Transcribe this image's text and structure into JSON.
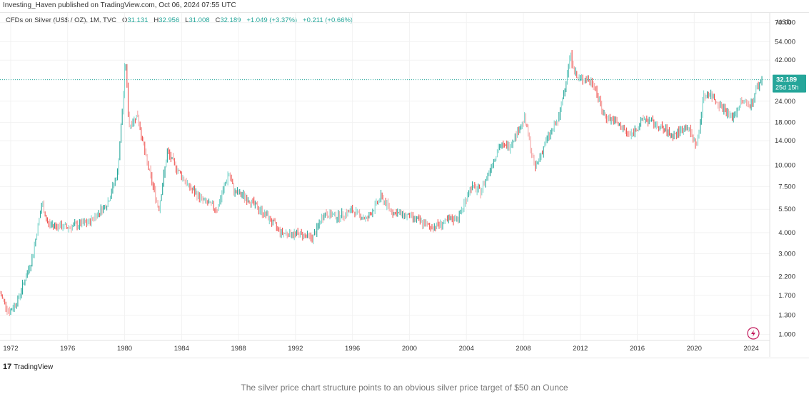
{
  "header": {
    "text": "Investing_Haven published on TradingView.com, Oct 06, 2024 07:55 UTC"
  },
  "legend": {
    "symbol": "CFDs on Silver (US$ / OZ), 1M, TVC",
    "o_label": "O",
    "o_value": "31.131",
    "h_label": "H",
    "h_value": "32.956",
    "l_label": "L",
    "l_value": "31.008",
    "c_label": "C",
    "c_value": "32.189",
    "change": "+1.049 (+3.37%)",
    "change2": "+0.211 (+0.66%)"
  },
  "price_axis": {
    "currency": "USD",
    "last_price": "32.189",
    "countdown": "25d 15h"
  },
  "branding": {
    "logo_mark": "17",
    "logo_text": "TradingView"
  },
  "caption": "The silver price chart structure points to an obvious silver price target of $50 an Ounce",
  "colors": {
    "up": "#26a69a",
    "down": "#ef5350",
    "up_light": "#7fd6cd",
    "down_light": "#f4a6a5",
    "last_price_line": "#26a69a",
    "badge_bg": "#26a69a",
    "icon": "#c2185b"
  },
  "chart_data": {
    "type": "candlestick",
    "series_name": "CFDs on Silver (US$ / OZ)",
    "y_scale": "log",
    "y_ticks": [
      70,
      54,
      42,
      24,
      18,
      14,
      10,
      7.5,
      5.5,
      4,
      3,
      2.2,
      1.7,
      1.3,
      1
    ],
    "y_tick_labels": [
      "70.000",
      "54.000",
      "42.000",
      "24.000",
      "18.000",
      "14.000",
      "10.000",
      "7.500",
      "5.500",
      "4.000",
      "3.000",
      "2.200",
      "1.700",
      "1.300",
      "1.000"
    ],
    "x_tick_labels": [
      "1972",
      "1976",
      "1980",
      "1984",
      "1988",
      "1992",
      "1996",
      "2000",
      "2004",
      "2008",
      "2012",
      "2016",
      "2020",
      "2024"
    ],
    "x_range": [
      1971.25,
      2025.3
    ],
    "ylim": [
      0.92,
      80
    ],
    "last_price": 32.189,
    "anchors": [
      [
        1971.25,
        1.75
      ],
      [
        1971.9,
        1.35
      ],
      [
        1972.5,
        1.6
      ],
      [
        1973.5,
        2.8
      ],
      [
        1974.2,
        6.0
      ],
      [
        1974.6,
        4.5
      ],
      [
        1976.0,
        4.3
      ],
      [
        1977.5,
        4.6
      ],
      [
        1978.8,
        6.0
      ],
      [
        1979.5,
        9.0
      ],
      [
        1979.9,
        25
      ],
      [
        1980.05,
        45
      ],
      [
        1980.3,
        17
      ],
      [
        1980.9,
        20
      ],
      [
        1981.5,
        11
      ],
      [
        1982.4,
        5.5
      ],
      [
        1983.0,
        12
      ],
      [
        1983.7,
        9.5
      ],
      [
        1984.5,
        7.5
      ],
      [
        1985.5,
        6.2
      ],
      [
        1986.5,
        5.5
      ],
      [
        1987.3,
        9.0
      ],
      [
        1987.7,
        7.0
      ],
      [
        1988.5,
        6.5
      ],
      [
        1990.0,
        5.0
      ],
      [
        1991.0,
        4.0
      ],
      [
        1992.5,
        3.9
      ],
      [
        1993.2,
        3.7
      ],
      [
        1994.0,
        5.2
      ],
      [
        1995.0,
        5.0
      ],
      [
        1996.0,
        5.4
      ],
      [
        1997.0,
        4.8
      ],
      [
        1998.0,
        6.5
      ],
      [
        1998.8,
        5.3
      ],
      [
        2000.0,
        5.0
      ],
      [
        2001.5,
        4.3
      ],
      [
        2002.5,
        4.6
      ],
      [
        2003.5,
        5.0
      ],
      [
        2004.3,
        7.5
      ],
      [
        2005.0,
        7.0
      ],
      [
        2006.3,
        13
      ],
      [
        2007.0,
        13
      ],
      [
        2008.1,
        19
      ],
      [
        2008.8,
        9.5
      ],
      [
        2009.6,
        14
      ],
      [
        2010.5,
        19
      ],
      [
        2011.3,
        45
      ],
      [
        2011.8,
        32
      ],
      [
        2012.3,
        33
      ],
      [
        2013.0,
        30
      ],
      [
        2013.6,
        20
      ],
      [
        2014.5,
        18
      ],
      [
        2015.5,
        15
      ],
      [
        2016.5,
        19
      ],
      [
        2017.5,
        17
      ],
      [
        2018.5,
        15
      ],
      [
        2019.5,
        17
      ],
      [
        2020.2,
        13
      ],
      [
        2020.6,
        25
      ],
      [
        2021.0,
        27
      ],
      [
        2022.0,
        22
      ],
      [
        2022.7,
        19
      ],
      [
        2023.3,
        24
      ],
      [
        2024.0,
        23
      ],
      [
        2024.4,
        29
      ],
      [
        2024.75,
        32.189
      ]
    ]
  }
}
